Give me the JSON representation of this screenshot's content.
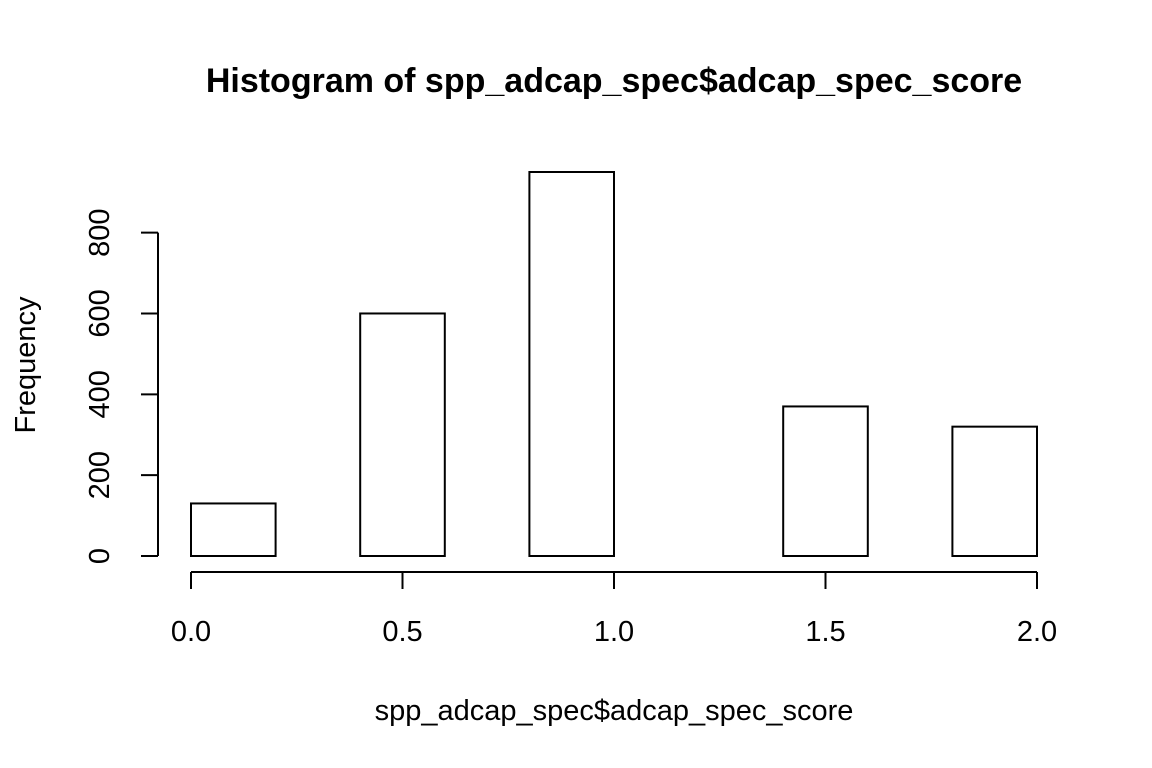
{
  "chart_data": {
    "type": "bar",
    "title": "Histogram of spp_adcap_spec$adcap_spec_score",
    "xlabel": "spp_adcap_spec$adcap_spec_score",
    "ylabel": "Frequency",
    "bins": [
      {
        "start": 0.0,
        "end": 0.2,
        "count": 130
      },
      {
        "start": 0.2,
        "end": 0.4,
        "count": 0
      },
      {
        "start": 0.4,
        "end": 0.6,
        "count": 600
      },
      {
        "start": 0.6,
        "end": 0.8,
        "count": 0
      },
      {
        "start": 0.8,
        "end": 1.0,
        "count": 950
      },
      {
        "start": 1.0,
        "end": 1.2,
        "count": 0
      },
      {
        "start": 1.2,
        "end": 1.4,
        "count": 0
      },
      {
        "start": 1.4,
        "end": 1.6,
        "count": 370
      },
      {
        "start": 1.6,
        "end": 1.8,
        "count": 0
      },
      {
        "start": 1.8,
        "end": 2.0,
        "count": 320
      }
    ],
    "xlim": [
      0.0,
      2.0
    ],
    "ylim": [
      0,
      950
    ],
    "x_ticks": [
      0.0,
      0.5,
      1.0,
      1.5,
      2.0
    ],
    "x_tick_labels": [
      "0.0",
      "0.5",
      "1.0",
      "1.5",
      "2.0"
    ],
    "y_ticks": [
      0,
      200,
      400,
      600,
      800
    ],
    "y_tick_labels": [
      "0",
      "200",
      "400",
      "600",
      "800"
    ],
    "grid": false,
    "legend": "none",
    "bar_fill": "#ffffff",
    "bar_stroke": "#000000"
  }
}
